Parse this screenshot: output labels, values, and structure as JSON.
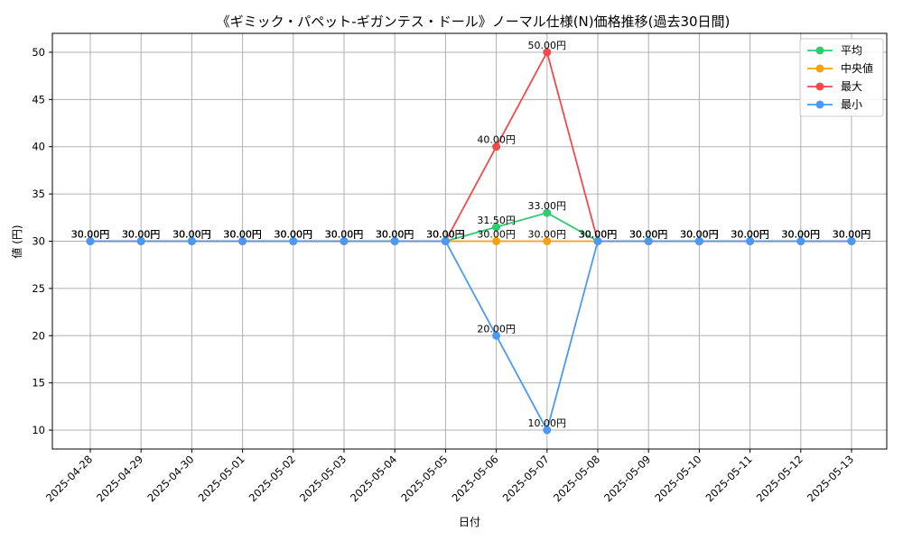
{
  "chart_data": {
    "type": "line",
    "title": "《ギミック・パペット-ギガンテス・ドール》ノーマル仕様(N)価格推移(過去30日間)",
    "xlabel": "日付",
    "ylabel": "値 (円)",
    "categories": [
      "2025-04-28",
      "2025-04-29",
      "2025-04-30",
      "2025-05-01",
      "2025-05-02",
      "2025-05-03",
      "2025-05-04",
      "2025-05-05",
      "2025-05-06",
      "2025-05-07",
      "2025-05-08",
      "2025-05-09",
      "2025-05-10",
      "2025-05-11",
      "2025-05-12",
      "2025-05-13"
    ],
    "ylim": [
      8,
      52
    ],
    "yticks": [
      10,
      15,
      20,
      25,
      30,
      35,
      40,
      45,
      50
    ],
    "grid": true,
    "legend_position": "top-right",
    "series": [
      {
        "name": "平均",
        "color": "#2ecc71",
        "values": [
          30,
          30,
          30,
          30,
          30,
          30,
          30,
          30,
          31.5,
          33,
          30,
          30,
          30,
          30,
          30,
          30
        ]
      },
      {
        "name": "中央値",
        "color": "#f5a20a",
        "values": [
          30,
          30,
          30,
          30,
          30,
          30,
          30,
          30,
          30,
          30,
          30,
          30,
          30,
          30,
          30,
          30
        ]
      },
      {
        "name": "最大",
        "color": "#f04b4b",
        "values": [
          30,
          30,
          30,
          30,
          30,
          30,
          30,
          30,
          40,
          50,
          30,
          30,
          30,
          30,
          30,
          30
        ]
      },
      {
        "name": "最小",
        "color": "#4a9af5",
        "values": [
          30,
          30,
          30,
          30,
          30,
          30,
          30,
          30,
          20,
          10,
          30,
          30,
          30,
          30,
          30,
          30
        ]
      }
    ],
    "label_suffix": "円"
  }
}
